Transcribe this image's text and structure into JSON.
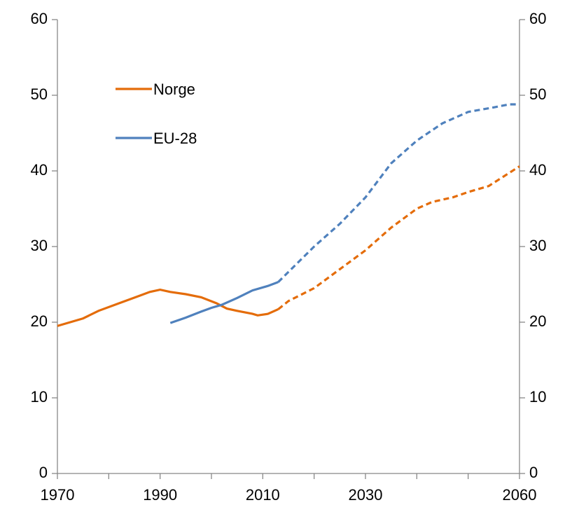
{
  "chart_data": {
    "type": "line",
    "xlim": [
      1970,
      2060
    ],
    "xticks": [
      1970,
      1990,
      2010,
      2030,
      2060
    ],
    "xminor_ticks": [
      1980,
      2000,
      2020,
      2040,
      2050
    ],
    "ylim": [
      0,
      60
    ],
    "yticks": [
      0,
      10,
      20,
      30,
      40,
      50,
      60
    ],
    "y2lim": [
      0,
      60
    ],
    "y2ticks": [
      0,
      10,
      20,
      30,
      40,
      50,
      60
    ],
    "legend": "upper left",
    "series": [
      {
        "name": "Norge",
        "color": "#e46c0a",
        "x": [
          1970,
          1975,
          1978,
          1982,
          1986,
          1988,
          1990,
          1992,
          1995,
          1998,
          2001,
          2003,
          2005,
          2008,
          2009,
          2011,
          2013
        ],
        "values": [
          19.5,
          20.5,
          21.5,
          22.5,
          23.5,
          24,
          24.3,
          24,
          23.7,
          23.3,
          22.5,
          21.8,
          21.5,
          21.1,
          20.9,
          21.1,
          21.7
        ],
        "projection_x": [
          2013,
          2015,
          2020,
          2025,
          2030,
          2035,
          2040,
          2043,
          2047,
          2050,
          2054,
          2060
        ],
        "projection_values": [
          21.7,
          22.8,
          24.5,
          27,
          29.5,
          32.5,
          35,
          35.9,
          36.5,
          37.2,
          38,
          40.6
        ]
      },
      {
        "name": "EU-28",
        "color": "#4f81bd",
        "x": [
          1992,
          1995,
          1998,
          2000,
          2002,
          2005,
          2008,
          2011,
          2013
        ],
        "values": [
          19.9,
          20.6,
          21.4,
          21.9,
          22.3,
          23.2,
          24.2,
          24.8,
          25.3
        ],
        "projection_x": [
          2013,
          2020,
          2025,
          2030,
          2035,
          2040,
          2045,
          2050,
          2055,
          2058,
          2060
        ],
        "projection_values": [
          25.3,
          30,
          33,
          36.5,
          41,
          44,
          46.3,
          47.8,
          48.4,
          48.8,
          48.8
        ]
      }
    ]
  }
}
